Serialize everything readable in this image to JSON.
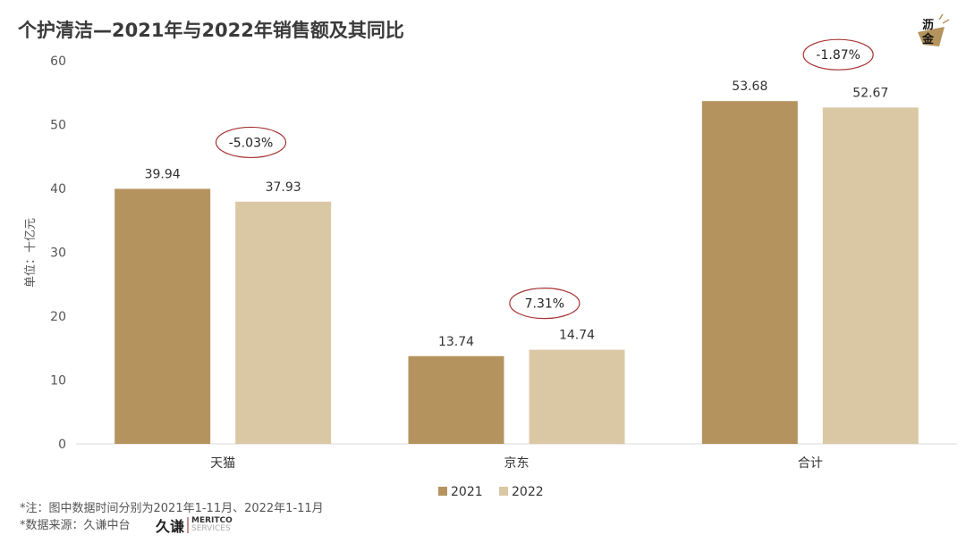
{
  "title": "个护清洁—2021年与2022年销售额及其同比",
  "brand_logo": "沥金",
  "footnotes": {
    "note": "*注：图中数据时间分别为2021年1-11月、2022年1-11月",
    "source": "*数据来源：久谦中台"
  },
  "source_logo": {
    "cn": "久谦",
    "en1": "MERITCO",
    "en2": "SERVICES"
  },
  "chart_data": {
    "type": "bar",
    "title": "",
    "ylabel": "单位：十亿元",
    "xlabel": "",
    "ylim": [
      0,
      60
    ],
    "yticks": [
      0,
      10,
      20,
      30,
      40,
      50,
      60
    ],
    "grid": false,
    "legend_position": "bottom",
    "categories": [
      "天猫",
      "京东",
      "合计"
    ],
    "series": [
      {
        "name": "2021",
        "values": [
          39.94,
          13.74,
          53.68
        ],
        "color": "#b5935f"
      },
      {
        "name": "2022",
        "values": [
          37.93,
          14.74,
          52.67
        ],
        "color": "#dac8a5"
      }
    ],
    "annotations": [
      "-5.03%",
      "7.31%",
      "-1.87%"
    ],
    "annotation_color": "#a83232"
  }
}
